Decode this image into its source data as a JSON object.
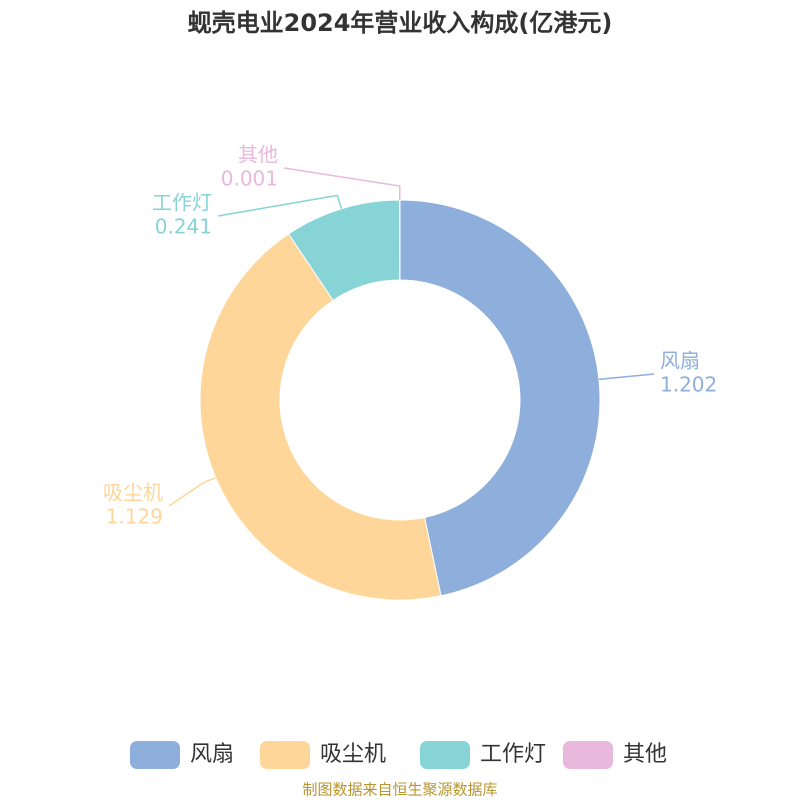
{
  "chart_data": {
    "type": "donut",
    "title": "蚬壳电业2024年营业收入构成(亿港元)",
    "categories": [
      "风扇",
      "吸尘机",
      "工作灯",
      "其他"
    ],
    "values": [
      1.202,
      1.129,
      0.241,
      0.001
    ],
    "colors": [
      "#8eaedb",
      "#ffd699",
      "#86d4d6",
      "#e8b9dc"
    ],
    "source": "制图数据来自恒生聚源数据库"
  }
}
